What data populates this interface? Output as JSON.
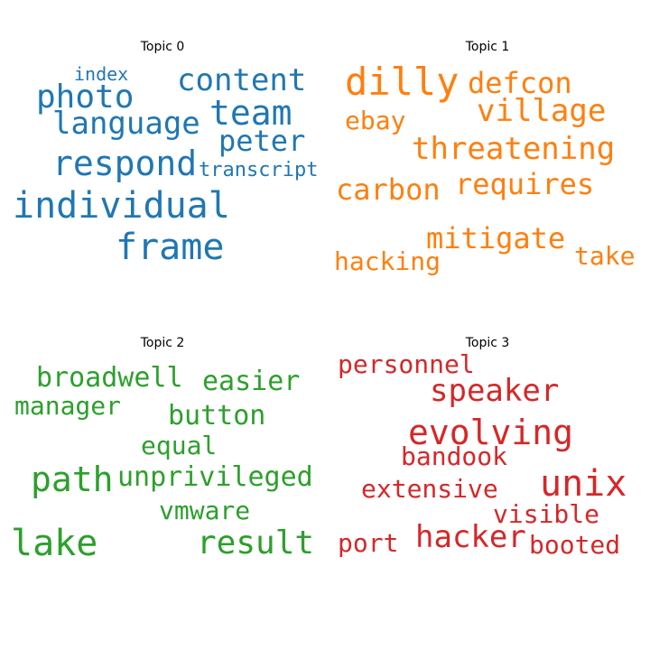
{
  "chart_data": {
    "type": "wordcloud",
    "topics": [
      {
        "title": "Topic 0",
        "color": "#1f77b4",
        "words": [
          "index",
          "content",
          "photo",
          "language",
          "team",
          "peter",
          "respond",
          "transcript",
          "individual",
          "frame"
        ]
      },
      {
        "title": "Topic 1",
        "color": "#ff7f0e",
        "words": [
          "dilly",
          "defcon",
          "village",
          "ebay",
          "threatening",
          "carbon",
          "requires",
          "mitigate",
          "hacking",
          "take"
        ]
      },
      {
        "title": "Topic 2",
        "color": "#2ca02c",
        "words": [
          "broadwell",
          "easier",
          "manager",
          "button",
          "equal",
          "path",
          "unprivileged",
          "vmware",
          "lake",
          "result"
        ]
      },
      {
        "title": "Topic 3",
        "color": "#d62728",
        "words": [
          "personnel",
          "speaker",
          "evolving",
          "bandook",
          "unix",
          "extensive",
          "visible",
          "port",
          "hacker",
          "booted"
        ]
      }
    ]
  }
}
